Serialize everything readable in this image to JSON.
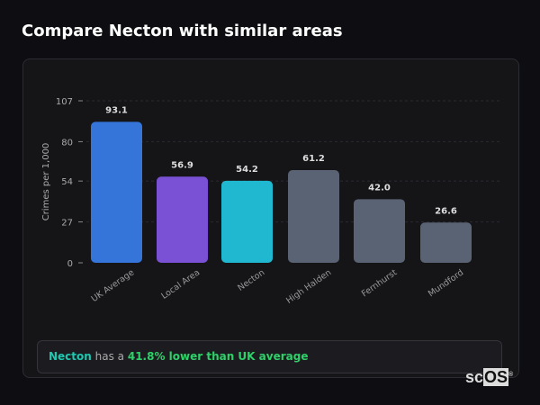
{
  "title": "Compare Necton with similar areas",
  "chart_data": {
    "type": "bar",
    "ylabel": "Crimes per 1,000",
    "ylim": [
      0,
      107
    ],
    "yticks": [
      0,
      27,
      54,
      80,
      107
    ],
    "categories": [
      "UK Average",
      "Local Area",
      "Necton",
      "High Halden",
      "Fernhurst",
      "Mundford"
    ],
    "values": [
      93.1,
      56.9,
      54.2,
      61.2,
      42.0,
      26.6
    ],
    "value_labels": [
      "93.1",
      "56.9",
      "54.2",
      "61.2",
      "42.0",
      "26.6"
    ],
    "colors": [
      "#3574d8",
      "#7a50d4",
      "#20b8d0",
      "#5a6373",
      "#5a6373",
      "#5a6373"
    ],
    "grid": true
  },
  "footer": {
    "place": "Necton",
    "middle": " has a ",
    "highlight": "41.8% lower than UK average"
  },
  "logo": "scOS"
}
